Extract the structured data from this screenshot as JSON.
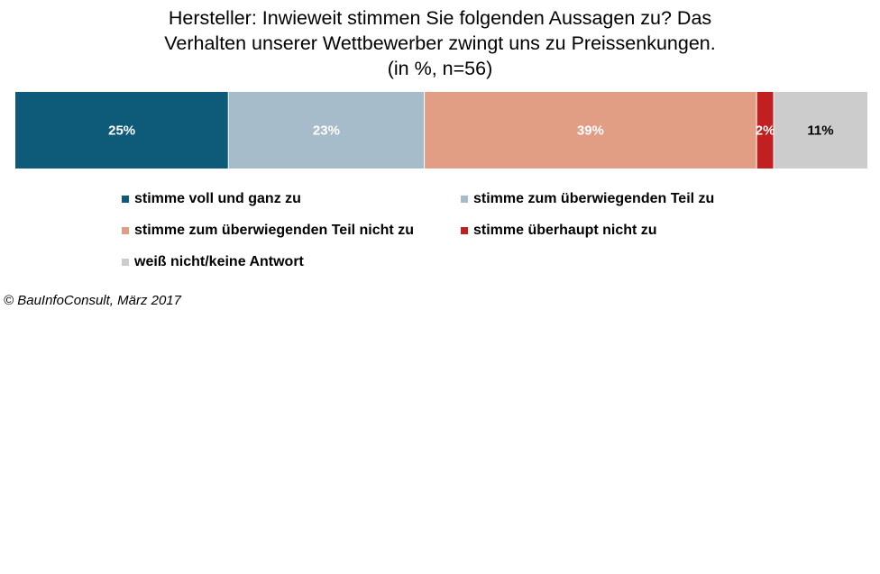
{
  "chart_data": {
    "type": "stacked-bar-100",
    "title": [
      "Hersteller: Inwieweit stimmen Sie folgenden Aussagen zu? Das",
      "Verhalten unserer Wettbewerber zwingt uns zu Preissenkungen.",
      "(in %, n=56)"
    ],
    "series": [
      {
        "name": "stimme voll und ganz zu",
        "value": 25,
        "label": "25%",
        "color": "#0e5a79",
        "label_color": "#ffffff"
      },
      {
        "name": "stimme zum überwiegenden Teil zu",
        "value": 23,
        "label": "23%",
        "color": "#a6bccb",
        "label_color": "#ffffff"
      },
      {
        "name": "stimme zum überwiegenden Teil nicht zu",
        "value": 39,
        "label": "39%",
        "color": "#e19e85",
        "label_color": "#ffffff"
      },
      {
        "name": "stimme überhaupt nicht zu",
        "value": 2,
        "label": "2%",
        "color": "#c0201f",
        "label_color": "#ffffff"
      },
      {
        "name": "weiß nicht/keine Antwort",
        "value": 11,
        "label": "11%",
        "color": "#cccccc",
        "label_color": "#000000"
      }
    ],
    "legend_position": "bottom"
  },
  "source": "© BauInfoConsult, März 2017"
}
